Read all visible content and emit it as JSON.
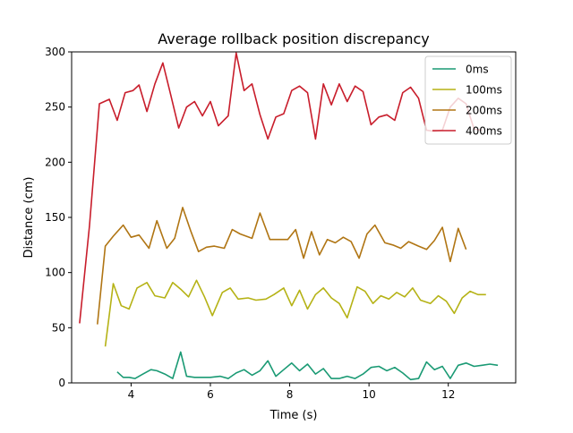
{
  "chart_data": {
    "type": "line",
    "title": "Average rollback position discrepancy",
    "xlabel": "Time (s)",
    "ylabel": "Distance (cm)",
    "xlim": [
      2.5,
      13.7
    ],
    "ylim": [
      0,
      300
    ],
    "xticks": [
      4,
      6,
      8,
      10,
      12
    ],
    "yticks": [
      0,
      50,
      100,
      150,
      200,
      250,
      300
    ],
    "xtick_labels": [
      "4",
      "6",
      "8",
      "10",
      "12"
    ],
    "ytick_labels": [
      "0",
      "50",
      "100",
      "150",
      "200",
      "250",
      "300"
    ],
    "grid": false,
    "legend_position": "top-right",
    "series": [
      {
        "name": "0ms",
        "color": "#1a9a74",
        "x": [
          3.65,
          3.8,
          3.95,
          4.1,
          4.3,
          4.5,
          4.65,
          4.85,
          5.05,
          5.25,
          5.4,
          5.6,
          5.8,
          6.0,
          6.25,
          6.45,
          6.65,
          6.85,
          7.05,
          7.25,
          7.45,
          7.65,
          7.85,
          8.05,
          8.25,
          8.45,
          8.65,
          8.85,
          9.05,
          9.25,
          9.45,
          9.65,
          9.85,
          10.05,
          10.25,
          10.45,
          10.65,
          10.85,
          11.05,
          11.25,
          11.45,
          11.65,
          11.85,
          12.05,
          12.25,
          12.45,
          12.65,
          12.85,
          13.05,
          13.25
        ],
        "y": [
          10,
          5,
          5,
          4,
          8,
          12,
          11,
          8,
          4,
          28,
          6,
          5,
          5,
          5,
          6,
          4,
          9,
          12,
          7,
          11,
          20,
          6,
          12,
          18,
          11,
          17,
          8,
          13,
          4,
          4,
          6,
          4,
          8,
          14,
          15,
          11,
          14,
          9,
          3,
          4,
          19,
          12,
          15,
          4,
          16,
          18,
          15,
          16,
          17,
          16
        ]
      },
      {
        "name": "100ms",
        "color": "#b5b215",
        "x": [
          3.35,
          3.55,
          3.75,
          3.95,
          4.15,
          4.4,
          4.6,
          4.85,
          5.05,
          5.25,
          5.45,
          5.65,
          5.85,
          6.05,
          6.3,
          6.5,
          6.7,
          6.95,
          7.15,
          7.4,
          7.6,
          7.85,
          8.05,
          8.25,
          8.45,
          8.65,
          8.85,
          9.05,
          9.25,
          9.45,
          9.7,
          9.9,
          10.1,
          10.3,
          10.5,
          10.7,
          10.9,
          11.1,
          11.3,
          11.55,
          11.75,
          11.95,
          12.15,
          12.35,
          12.55,
          12.75,
          12.95
        ],
        "y": [
          33,
          90,
          70,
          67,
          86,
          91,
          79,
          77,
          91,
          85,
          78,
          93,
          78,
          61,
          82,
          86,
          76,
          77,
          75,
          76,
          80,
          86,
          70,
          84,
          67,
          80,
          86,
          77,
          72,
          59,
          87,
          83,
          72,
          79,
          76,
          82,
          78,
          86,
          75,
          72,
          79,
          74,
          63,
          77,
          83,
          80,
          80
        ]
      },
      {
        "name": "200ms",
        "color": "#b07513",
        "x": [
          3.15,
          3.35,
          3.55,
          3.8,
          4.0,
          4.2,
          4.45,
          4.65,
          4.9,
          5.1,
          5.3,
          5.5,
          5.7,
          5.9,
          6.1,
          6.35,
          6.55,
          6.75,
          7.05,
          7.25,
          7.5,
          7.75,
          7.95,
          8.15,
          8.35,
          8.55,
          8.75,
          8.95,
          9.15,
          9.35,
          9.55,
          9.75,
          9.95,
          10.15,
          10.4,
          10.6,
          10.8,
          11.0,
          11.25,
          11.45,
          11.65,
          11.85,
          12.05,
          12.25,
          12.45
        ],
        "y": [
          53,
          124,
          133,
          143,
          132,
          134,
          122,
          147,
          122,
          131,
          159,
          138,
          119,
          123,
          124,
          122,
          139,
          135,
          131,
          154,
          130,
          130,
          130,
          139,
          113,
          137,
          116,
          130,
          127,
          132,
          128,
          113,
          135,
          143,
          127,
          125,
          122,
          128,
          124,
          121,
          129,
          141,
          110,
          140,
          121
        ]
      },
      {
        "name": "400ms",
        "color": "#c81d2b",
        "x": [
          2.7,
          2.95,
          3.2,
          3.45,
          3.65,
          3.85,
          4.05,
          4.2,
          4.4,
          4.6,
          4.8,
          5.0,
          5.2,
          5.4,
          5.6,
          5.8,
          6.0,
          6.2,
          6.45,
          6.65,
          6.85,
          7.05,
          7.25,
          7.45,
          7.65,
          7.85,
          8.05,
          8.25,
          8.45,
          8.65,
          8.85,
          9.05,
          9.25,
          9.45,
          9.65,
          9.85,
          10.05,
          10.25,
          10.45,
          10.65,
          10.85,
          11.05,
          11.25,
          11.45,
          11.65,
          11.85,
          12.05,
          12.25,
          12.45,
          12.65,
          12.85
        ],
        "y": [
          54,
          142,
          253,
          257,
          238,
          263,
          265,
          270,
          246,
          271,
          290,
          261,
          231,
          250,
          255,
          242,
          255,
          233,
          242,
          299,
          265,
          271,
          243,
          221,
          241,
          244,
          265,
          269,
          263,
          221,
          271,
          252,
          271,
          255,
          269,
          264,
          234,
          241,
          243,
          238,
          263,
          268,
          258,
          229,
          228,
          229,
          250,
          258,
          253,
          230,
          229
        ]
      }
    ]
  }
}
